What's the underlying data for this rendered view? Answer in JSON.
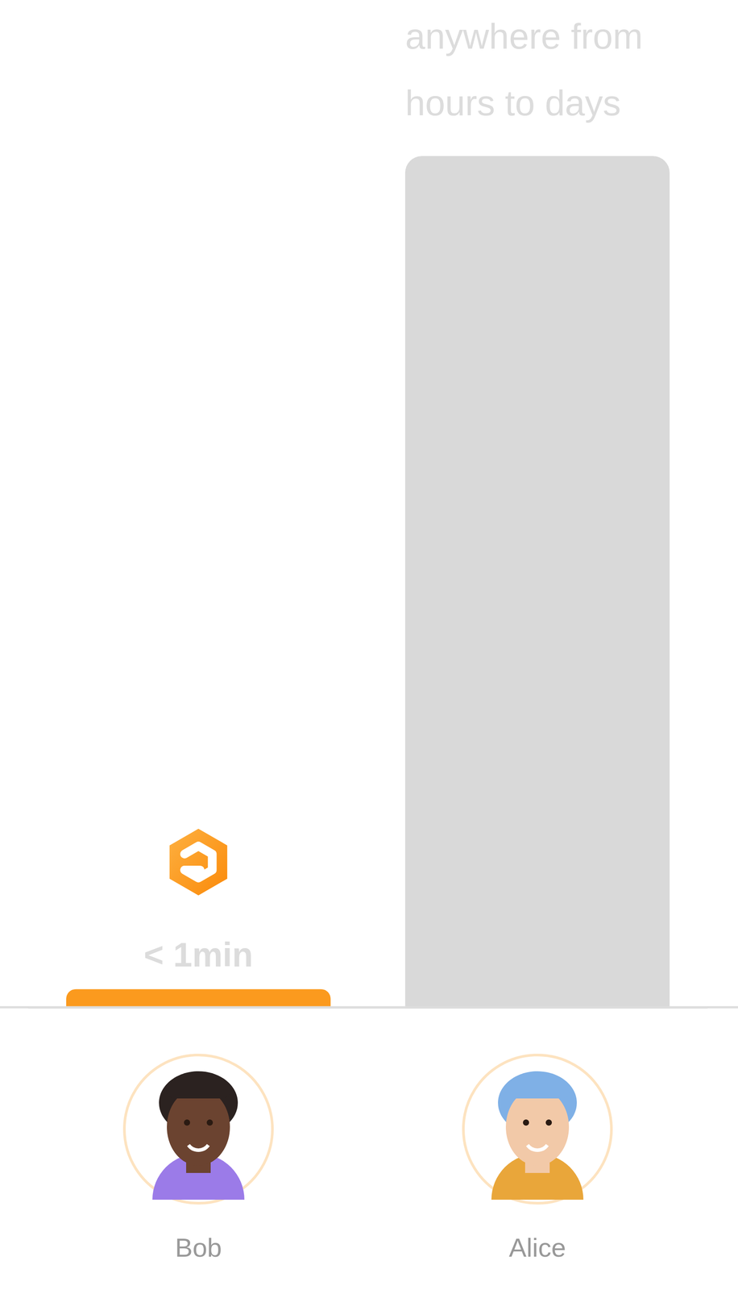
{
  "chart_data": {
    "type": "bar",
    "categories": [
      "Bob",
      "Alice"
    ],
    "values": [
      1,
      47
    ],
    "value_labels": [
      "< 1min",
      "anywhere from hours to days"
    ],
    "colors": [
      "#fb9a1e",
      "#d9d9d9"
    ],
    "ylim": [
      0,
      47
    ],
    "yticks": [
      0,
      47
    ],
    "data_labels": true,
    "tick_labels": "x",
    "grid": false
  }
}
